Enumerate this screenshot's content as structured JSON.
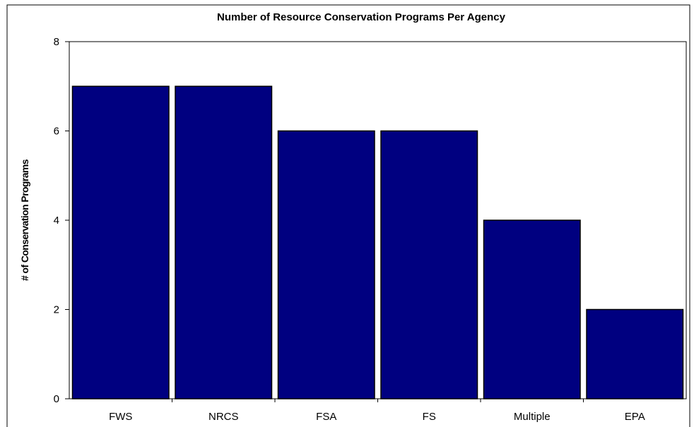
{
  "chart_data": {
    "type": "bar",
    "title": "Number of Resource Conservation Programs Per Agency",
    "xlabel": "",
    "ylabel": "# of Conservation Programs",
    "categories": [
      "FWS",
      "NRCS",
      "FSA",
      "FS",
      "Multiple",
      "EPA"
    ],
    "values": [
      7,
      7,
      6,
      6,
      4,
      2
    ],
    "ylim": [
      0,
      8
    ],
    "yticks": [
      "0",
      "2",
      "4",
      "6",
      "8"
    ],
    "grid": false,
    "legend": "none",
    "colors": {
      "bar": "#000080",
      "bar_stroke": "#000000",
      "axis": "#000000"
    }
  }
}
